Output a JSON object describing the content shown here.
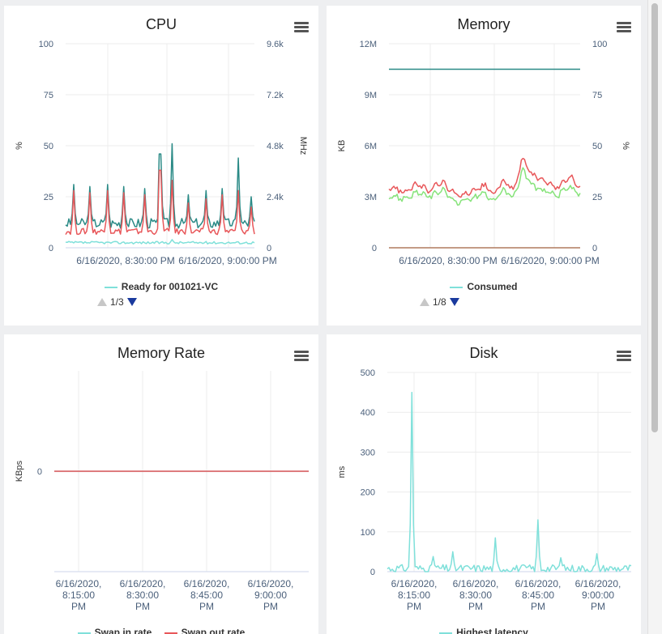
{
  "panels": [
    {
      "key": "cpu",
      "title": "CPU",
      "left_axis_label": "%",
      "right_axis_label": "MHz",
      "legend_item": "Ready for 001021-VC",
      "pager": "1/3"
    },
    {
      "key": "memory",
      "title": "Memory",
      "left_axis_label": "KB",
      "right_axis_label": "%",
      "legend_item": "Consumed",
      "pager": "1/8"
    },
    {
      "key": "memrate",
      "title": "Memory Rate",
      "left_axis_label": "KBps",
      "legend_items": [
        "Swap in rate",
        "Swap out rate"
      ]
    },
    {
      "key": "disk",
      "title": "Disk",
      "left_axis_label": "ms",
      "legend_item": "Highest latency"
    }
  ],
  "colors": {
    "teal_dark": "#2a8a86",
    "red": "#e8575a",
    "cyan": "#7fe0da",
    "green": "#86e37a",
    "brown": "#b07a5e",
    "tick": "#4a5f7a",
    "grid": "#ececec"
  },
  "chart_data": [
    {
      "type": "line",
      "title": "CPU",
      "ylabel": "%",
      "ylabel_right": "MHz",
      "ylim": [
        0,
        100
      ],
      "ylim_right": [
        0,
        9600
      ],
      "y_ticks": [
        "0",
        "25",
        "50",
        "75",
        "100"
      ],
      "y_ticks_right": [
        "0",
        "2.4k",
        "4.8k",
        "7.2k",
        "9.6k"
      ],
      "x_ticks": [
        "6/16/2020, 8:30:00 PM",
        "6/16/2020, 9:00:00 PM"
      ],
      "x_range": [
        "8:03 PM",
        "9:10 PM"
      ],
      "legend": [
        "Ready for 001021-VC"
      ],
      "series": [
        {
          "color": "teal_dark",
          "baseline": 12,
          "jitter": 2.5,
          "peaks": [
            [
              0.04,
              31
            ],
            [
              0.13,
              30
            ],
            [
              0.22,
              31
            ],
            [
              0.31,
              30
            ],
            [
              0.42,
              29
            ],
            [
              0.5,
              46
            ],
            [
              0.565,
              51
            ],
            [
              0.65,
              26
            ],
            [
              0.74,
              28
            ],
            [
              0.83,
              29
            ],
            [
              0.915,
              44
            ],
            [
              0.985,
              25
            ]
          ]
        },
        {
          "color": "red",
          "baseline": 8,
          "jitter": 1.5,
          "peaks": [
            [
              0.04,
              28
            ],
            [
              0.13,
              27
            ],
            [
              0.22,
              28
            ],
            [
              0.31,
              27
            ],
            [
              0.42,
              26
            ],
            [
              0.5,
              38
            ],
            [
              0.565,
              33
            ],
            [
              0.65,
              22
            ],
            [
              0.74,
              24
            ],
            [
              0.83,
              26
            ],
            [
              0.915,
              28
            ],
            [
              0.985,
              20
            ]
          ]
        },
        {
          "name": "Ready for 001021-VC",
          "color": "cyan",
          "baseline": 2.5,
          "jitter": 0.6,
          "peaks": [
            [
              0.565,
              4
            ]
          ]
        }
      ]
    },
    {
      "type": "line",
      "title": "Memory",
      "ylabel": "KB",
      "ylabel_right": "%",
      "ylim": [
        0,
        12000000
      ],
      "ylim_right": [
        0,
        100
      ],
      "y_ticks": [
        "0",
        "3M",
        "6M",
        "9M",
        "12M"
      ],
      "y_ticks_right": [
        "0",
        "25",
        "50",
        "75",
        "100"
      ],
      "x_ticks": [
        "6/16/2020, 8:30:00 PM",
        "6/16/2020, 9:00:00 PM"
      ],
      "x_range": [
        "8:03 PM",
        "9:10 PM"
      ],
      "legend": [
        "Consumed"
      ],
      "series": [
        {
          "color": "teal_dark",
          "constant": 10500000
        },
        {
          "color": "red",
          "profile": [
            [
              0,
              3.5
            ],
            [
              0.08,
              3.2
            ],
            [
              0.15,
              3.7
            ],
            [
              0.2,
              3.3
            ],
            [
              0.28,
              3.8
            ],
            [
              0.35,
              3.0
            ],
            [
              0.45,
              3.3
            ],
            [
              0.5,
              3.6
            ],
            [
              0.55,
              3.1
            ],
            [
              0.6,
              3.9
            ],
            [
              0.65,
              3.3
            ],
            [
              0.7,
              5.2
            ],
            [
              0.75,
              4.2
            ],
            [
              0.82,
              3.8
            ],
            [
              0.88,
              3.5
            ],
            [
              0.95,
              4.1
            ],
            [
              1,
              3.5
            ]
          ],
          "unit": 1000000
        },
        {
          "name": "Consumed",
          "color": "green",
          "profile": [
            [
              0,
              3.0
            ],
            [
              0.08,
              2.8
            ],
            [
              0.15,
              3.2
            ],
            [
              0.2,
              2.9
            ],
            [
              0.28,
              3.3
            ],
            [
              0.35,
              2.6
            ],
            [
              0.45,
              2.9
            ],
            [
              0.5,
              3.1
            ],
            [
              0.55,
              2.7
            ],
            [
              0.6,
              3.4
            ],
            [
              0.65,
              2.8
            ],
            [
              0.7,
              4.5
            ],
            [
              0.75,
              3.6
            ],
            [
              0.82,
              3.2
            ],
            [
              0.88,
              3.0
            ],
            [
              0.95,
              3.5
            ],
            [
              1,
              3.0
            ]
          ],
          "unit": 1000000
        },
        {
          "color": "brown",
          "constant": 0
        }
      ]
    },
    {
      "type": "line",
      "title": "Memory Rate",
      "ylabel": "KBps",
      "y_ticks": [
        "0"
      ],
      "x_ticks": [
        "6/16/2020, 8:15:00 PM",
        "6/16/2020, 8:30:00 PM",
        "6/16/2020, 8:45:00 PM",
        "6/16/2020, 9:00:00 PM"
      ],
      "legend": [
        "Swap in rate",
        "Swap out rate"
      ],
      "series": [
        {
          "name": "Swap in rate",
          "color": "cyan",
          "constant": 0
        },
        {
          "name": "Swap out rate",
          "color": "red",
          "constant": 0
        }
      ]
    },
    {
      "type": "line",
      "title": "Disk",
      "ylabel": "ms",
      "ylim": [
        0,
        500
      ],
      "y_ticks": [
        "0",
        "100",
        "200",
        "300",
        "400",
        "500"
      ],
      "x_ticks": [
        "6/16/2020, 8:15:00 PM",
        "6/16/2020, 8:30:00 PM",
        "6/16/2020, 8:45:00 PM",
        "6/16/2020, 9:00:00 PM"
      ],
      "legend": [
        "Highest latency"
      ],
      "series": [
        {
          "name": "Highest latency",
          "color": "cyan",
          "baseline": 8,
          "jitter": 10,
          "peaks": [
            [
              0.1,
              450
            ],
            [
              0.19,
              38
            ],
            [
              0.27,
              50
            ],
            [
              0.44,
              85
            ],
            [
              0.62,
              130
            ],
            [
              0.71,
              35
            ],
            [
              0.86,
              45
            ]
          ]
        }
      ]
    }
  ]
}
